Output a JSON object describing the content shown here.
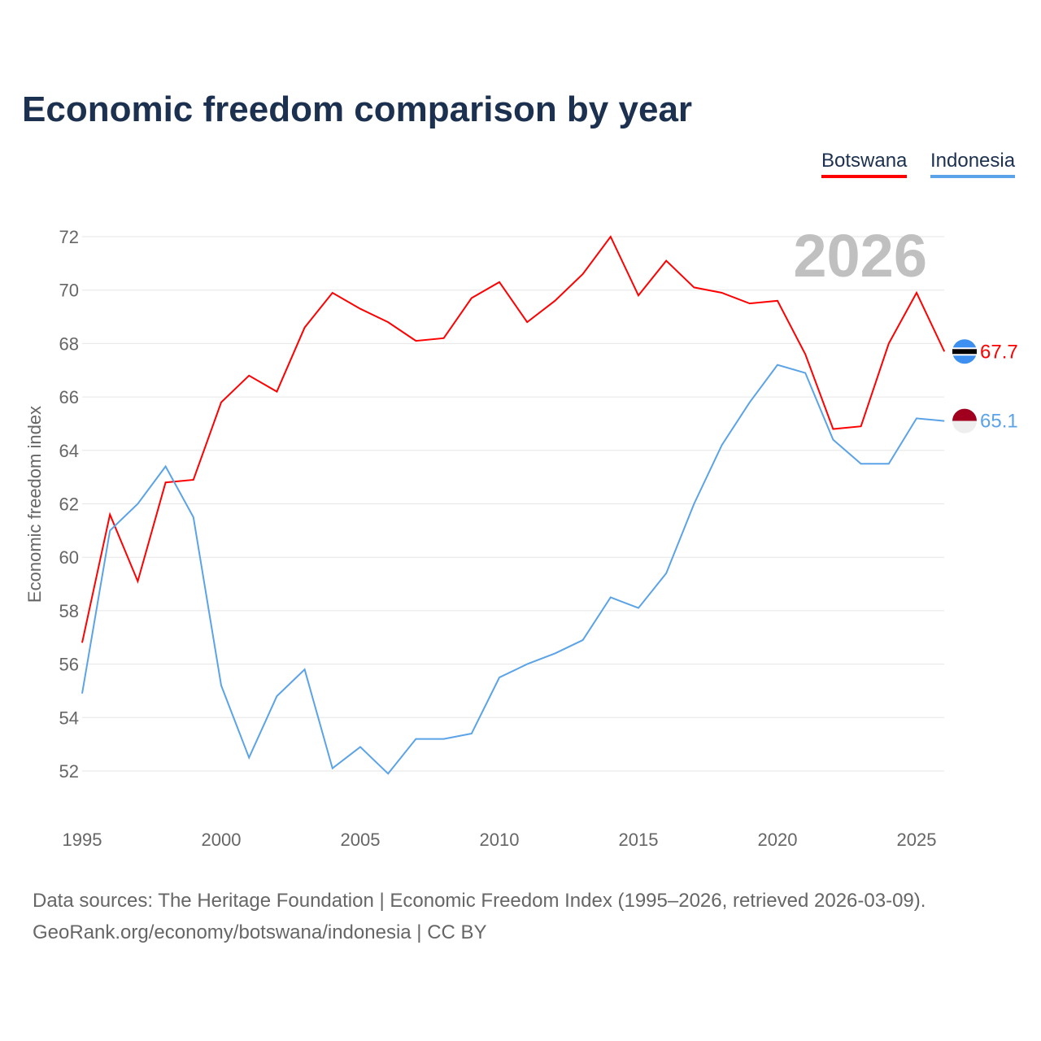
{
  "chart_data": {
    "type": "line",
    "title": "Economic freedom comparison by year",
    "ylabel": "Economic freedom index",
    "xlabel": "",
    "ylim": [
      50,
      73
    ],
    "xlim": [
      1995,
      2026
    ],
    "yticks": [
      52,
      54,
      56,
      58,
      60,
      62,
      64,
      66,
      68,
      70,
      72
    ],
    "xticks": [
      1995,
      2000,
      2005,
      2010,
      2015,
      2020,
      2025
    ],
    "grid": true,
    "legend_position": "top-right",
    "year_label": "2026",
    "x": [
      1995,
      1996,
      1997,
      1998,
      1999,
      2000,
      2001,
      2002,
      2003,
      2004,
      2005,
      2006,
      2007,
      2008,
      2009,
      2010,
      2011,
      2012,
      2013,
      2014,
      2015,
      2016,
      2017,
      2018,
      2019,
      2020,
      2021,
      2022,
      2023,
      2024,
      2025,
      2026
    ],
    "series": [
      {
        "name": "Botswana",
        "color": "#ff0000",
        "end_label": "67.7",
        "values": [
          56.8,
          61.6,
          59.1,
          62.8,
          62.9,
          65.8,
          66.8,
          66.2,
          68.6,
          69.9,
          69.3,
          68.8,
          68.1,
          68.2,
          69.7,
          70.3,
          68.8,
          69.6,
          70.6,
          72.0,
          69.8,
          71.1,
          70.1,
          69.9,
          69.5,
          69.6,
          67.6,
          64.8,
          64.9,
          68.0,
          69.9,
          67.7
        ]
      },
      {
        "name": "Indonesia",
        "color": "#5ba3e8",
        "end_label": "65.1",
        "values": [
          54.9,
          61.0,
          62.0,
          63.4,
          61.5,
          55.2,
          52.5,
          54.8,
          55.8,
          52.1,
          52.9,
          51.9,
          53.2,
          53.2,
          53.4,
          55.5,
          56.0,
          56.4,
          56.9,
          58.5,
          58.1,
          59.4,
          62.0,
          64.2,
          65.8,
          67.2,
          66.9,
          64.4,
          63.5,
          63.5,
          65.2,
          65.1
        ]
      }
    ]
  },
  "footer": {
    "line1": "Data sources: The Heritage Foundation | Economic Freedom Index (1995–2026, retrieved 2026-03-09).",
    "line2": "GeoRank.org/economy/botswana/indonesia | CC BY"
  }
}
